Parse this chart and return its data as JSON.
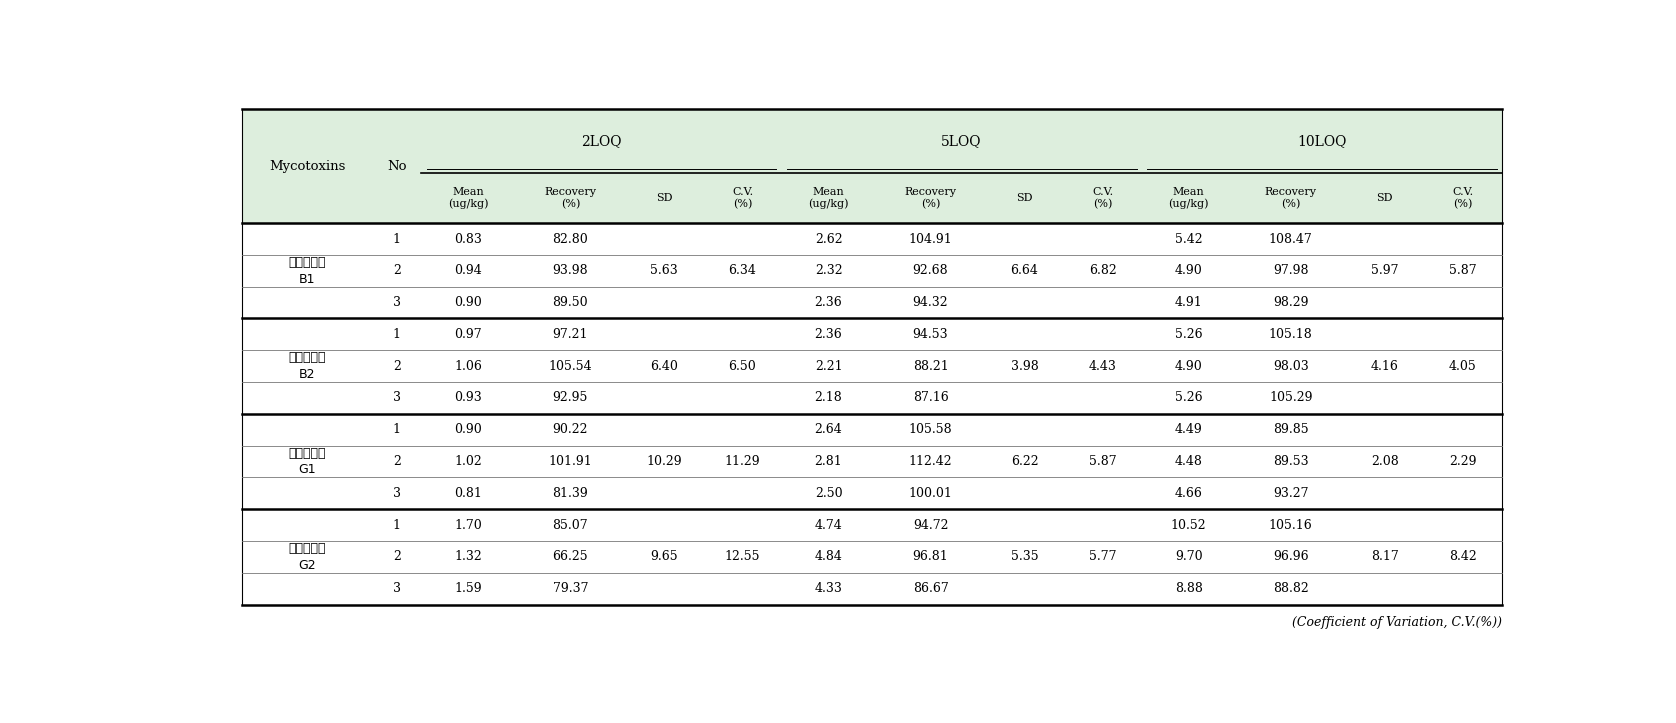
{
  "footer_note": "(Coefficient of Variation, C.V.(%))",
  "header_bg_color": "#ddeedd",
  "group_labels_line1": [
    "아플라톡신",
    "아플라톡신",
    "아플라톡신",
    "아플라톡신"
  ],
  "group_labels_line2": [
    "B1",
    "B2",
    "G1",
    "G2"
  ],
  "rows": [
    {
      "no": "1",
      "mean_2": "0.83",
      "rec_2": "82.80",
      "sd_2": "5.63",
      "cv_2": "6.34",
      "mean_5": "2.62",
      "rec_5": "104.91",
      "sd_5": "6.64",
      "cv_5": "6.82",
      "mean_10": "5.42",
      "rec_10": "108.47",
      "sd_10": "5.97",
      "cv_10": "5.87"
    },
    {
      "no": "2",
      "mean_2": "0.94",
      "rec_2": "93.98",
      "sd_2": "",
      "cv_2": "",
      "mean_5": "2.32",
      "rec_5": "92.68",
      "sd_5": "",
      "cv_5": "",
      "mean_10": "4.90",
      "rec_10": "97.98",
      "sd_10": "",
      "cv_10": ""
    },
    {
      "no": "3",
      "mean_2": "0.90",
      "rec_2": "89.50",
      "sd_2": "",
      "cv_2": "",
      "mean_5": "2.36",
      "rec_5": "94.32",
      "sd_5": "",
      "cv_5": "",
      "mean_10": "4.91",
      "rec_10": "98.29",
      "sd_10": "",
      "cv_10": ""
    },
    {
      "no": "1",
      "mean_2": "0.97",
      "rec_2": "97.21",
      "sd_2": "6.40",
      "cv_2": "6.50",
      "mean_5": "2.36",
      "rec_5": "94.53",
      "sd_5": "3.98",
      "cv_5": "4.43",
      "mean_10": "5.26",
      "rec_10": "105.18",
      "sd_10": "4.16",
      "cv_10": "4.05"
    },
    {
      "no": "2",
      "mean_2": "1.06",
      "rec_2": "105.54",
      "sd_2": "",
      "cv_2": "",
      "mean_5": "2.21",
      "rec_5": "88.21",
      "sd_5": "",
      "cv_5": "",
      "mean_10": "4.90",
      "rec_10": "98.03",
      "sd_10": "",
      "cv_10": ""
    },
    {
      "no": "3",
      "mean_2": "0.93",
      "rec_2": "92.95",
      "sd_2": "",
      "cv_2": "",
      "mean_5": "2.18",
      "rec_5": "87.16",
      "sd_5": "",
      "cv_5": "",
      "mean_10": "5.26",
      "rec_10": "105.29",
      "sd_10": "",
      "cv_10": ""
    },
    {
      "no": "1",
      "mean_2": "0.90",
      "rec_2": "90.22",
      "sd_2": "10.29",
      "cv_2": "11.29",
      "mean_5": "2.64",
      "rec_5": "105.58",
      "sd_5": "6.22",
      "cv_5": "5.87",
      "mean_10": "4.49",
      "rec_10": "89.85",
      "sd_10": "2.08",
      "cv_10": "2.29"
    },
    {
      "no": "2",
      "mean_2": "1.02",
      "rec_2": "101.91",
      "sd_2": "",
      "cv_2": "",
      "mean_5": "2.81",
      "rec_5": "112.42",
      "sd_5": "",
      "cv_5": "",
      "mean_10": "4.48",
      "rec_10": "89.53",
      "sd_10": "",
      "cv_10": ""
    },
    {
      "no": "3",
      "mean_2": "0.81",
      "rec_2": "81.39",
      "sd_2": "",
      "cv_2": "",
      "mean_5": "2.50",
      "rec_5": "100.01",
      "sd_5": "",
      "cv_5": "",
      "mean_10": "4.66",
      "rec_10": "93.27",
      "sd_10": "",
      "cv_10": ""
    },
    {
      "no": "1",
      "mean_2": "1.70",
      "rec_2": "85.07",
      "sd_2": "9.65",
      "cv_2": "12.55",
      "mean_5": "4.74",
      "rec_5": "94.72",
      "sd_5": "5.35",
      "cv_5": "5.77",
      "mean_10": "10.52",
      "rec_10": "105.16",
      "sd_10": "8.17",
      "cv_10": "8.42"
    },
    {
      "no": "2",
      "mean_2": "1.32",
      "rec_2": "66.25",
      "sd_2": "",
      "cv_2": "",
      "mean_5": "4.84",
      "rec_5": "96.81",
      "sd_5": "",
      "cv_5": "",
      "mean_10": "9.70",
      "rec_10": "96.96",
      "sd_10": "",
      "cv_10": ""
    },
    {
      "no": "3",
      "mean_2": "1.59",
      "rec_2": "79.37",
      "sd_2": "",
      "cv_2": "",
      "mean_5": "4.33",
      "rec_5": "86.67",
      "sd_5": "",
      "cv_5": "",
      "mean_10": "8.88",
      "rec_10": "88.82",
      "sd_10": "",
      "cv_10": ""
    }
  ]
}
